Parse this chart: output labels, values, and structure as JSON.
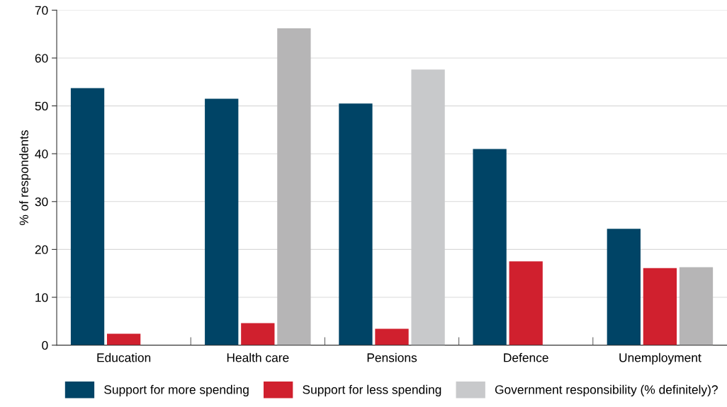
{
  "chart_data": {
    "type": "bar",
    "ylabel": "% of respondents",
    "categories": [
      "Education",
      "Health care",
      "Pensions",
      "Defence",
      "Unemployment"
    ],
    "series": [
      {
        "name": "Support for more spending",
        "color": "#004466",
        "values": [
          53.7,
          51.5,
          50.5,
          41.0,
          24.3
        ]
      },
      {
        "name": "Support for less spending",
        "color": "#d0202e",
        "values": [
          2.4,
          4.6,
          3.4,
          17.5,
          16.1
        ]
      },
      {
        "name": "Government responsibility (% definitely)?",
        "color": "#c8c9cb",
        "colors": [
          "#b6b5b6",
          "#b6b5b6",
          "#c8c9cb",
          "#b6b5b6",
          "#b6b5b6"
        ],
        "values": [
          null,
          66.2,
          57.6,
          null,
          16.3
        ]
      }
    ],
    "ylim": [
      0,
      70
    ],
    "yticks": [
      0,
      10,
      20,
      30,
      40,
      50,
      60,
      70
    ],
    "grid": "y",
    "legend": "bottom"
  }
}
